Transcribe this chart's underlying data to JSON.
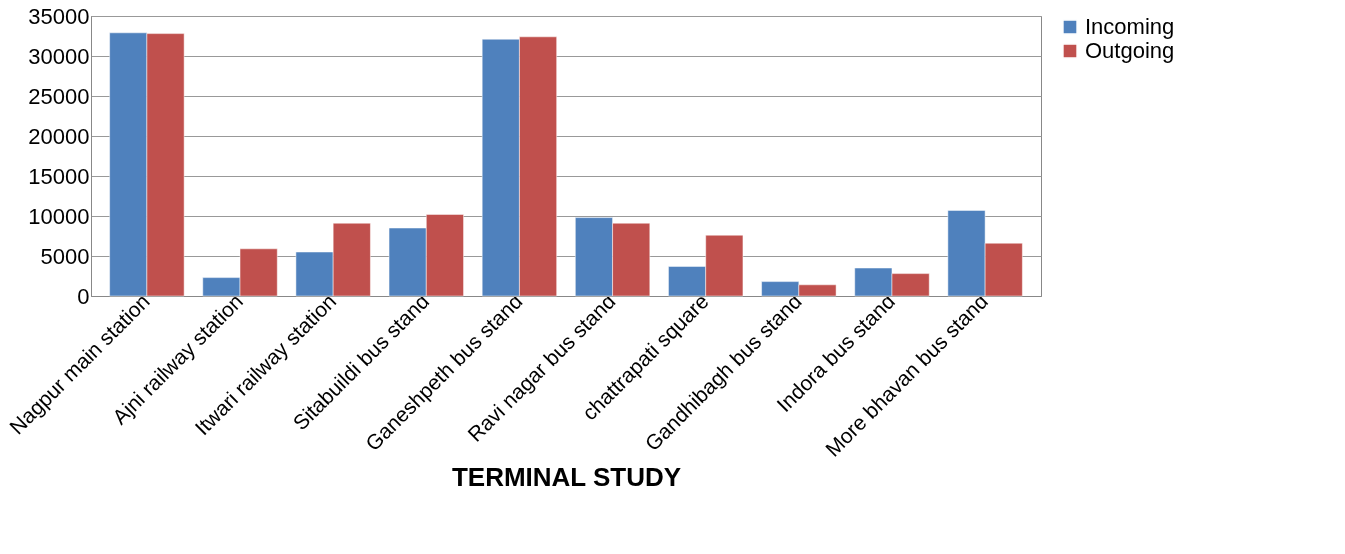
{
  "chart_data": {
    "type": "bar",
    "xlabel": "TERMINAL STUDY",
    "categories": [
      "Nagpur main station",
      "Ajni railway station",
      "Itwari railway station",
      "Sitabuildi bus stand",
      "Ganeshpeth bus stand",
      "Ravi nagar bus stand",
      "chattrapati square",
      "Gandhibagh bus stand",
      "Indora bus stand",
      "More bhavan bus stand"
    ],
    "series": [
      {
        "name": "Incoming",
        "color": "#4f81bd",
        "values": [
          32900,
          2300,
          5500,
          8500,
          32100,
          9800,
          3700,
          1800,
          3500,
          10700
        ]
      },
      {
        "name": "Outgoing",
        "color": "#c0504d",
        "values": [
          32800,
          5900,
          9100,
          10200,
          32400,
          9100,
          7600,
          1400,
          2800,
          6600
        ]
      }
    ],
    "ylim": [
      0,
      35000
    ],
    "yticks": [
      0,
      5000,
      10000,
      15000,
      20000,
      25000,
      30000,
      35000
    ],
    "grid": "y",
    "legend": "right"
  }
}
